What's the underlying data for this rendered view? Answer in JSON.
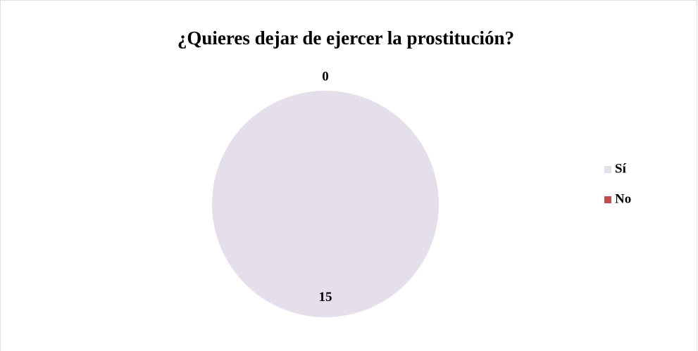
{
  "chart_data": {
    "type": "pie",
    "title": "¿Quieres dejar de ejercer la prostitución?",
    "categories": [
      "Sí",
      "No"
    ],
    "values": [
      15,
      0
    ],
    "colors": [
      "#e5dfec",
      "#c0504d"
    ],
    "legend": "right"
  }
}
